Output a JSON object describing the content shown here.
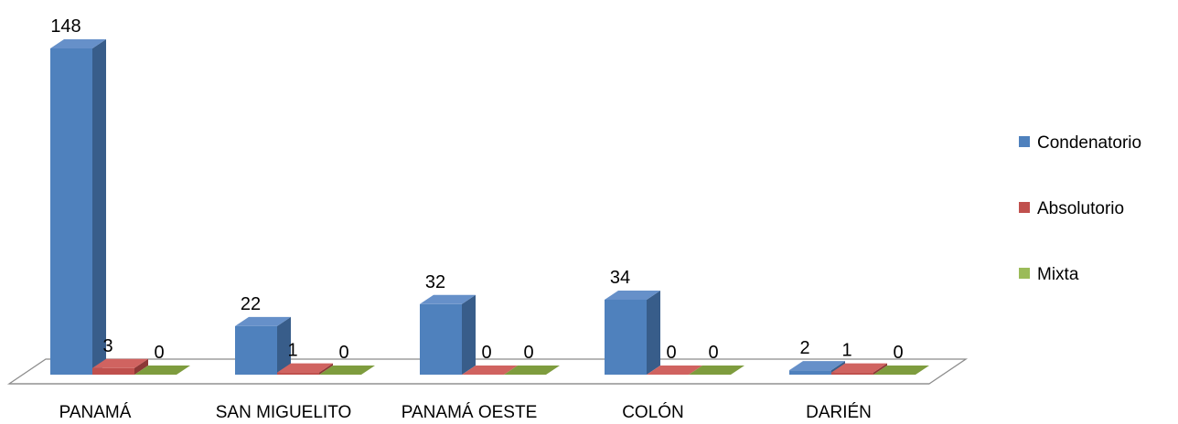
{
  "chart_data": {
    "type": "bar",
    "categories": [
      "PANAMÁ",
      "SAN MIGUELITO",
      "PANAMÁ OESTE",
      "COLÓN",
      "DARIÉN"
    ],
    "series": [
      {
        "name": "Condenatorio",
        "values": [
          148,
          22,
          32,
          34,
          2
        ]
      },
      {
        "name": "Absolutorio",
        "values": [
          3,
          1,
          0,
          0,
          1
        ]
      },
      {
        "name": "Mixta",
        "values": [
          0,
          0,
          0,
          0,
          0
        ]
      }
    ],
    "data_labels": true,
    "grid": false,
    "legend_position": "right",
    "three_d": true,
    "colors": {
      "Condenatorio": {
        "front": "#4f81bd",
        "side": "#385d8a",
        "top": "#6690c9"
      },
      "Absolutorio": {
        "front": "#c0504d",
        "side": "#8c3836",
        "top": "#d06360"
      },
      "Mixta": {
        "front": "#9bbb59",
        "side": "#71893f",
        "top": "#7e9c3e"
      }
    }
  }
}
